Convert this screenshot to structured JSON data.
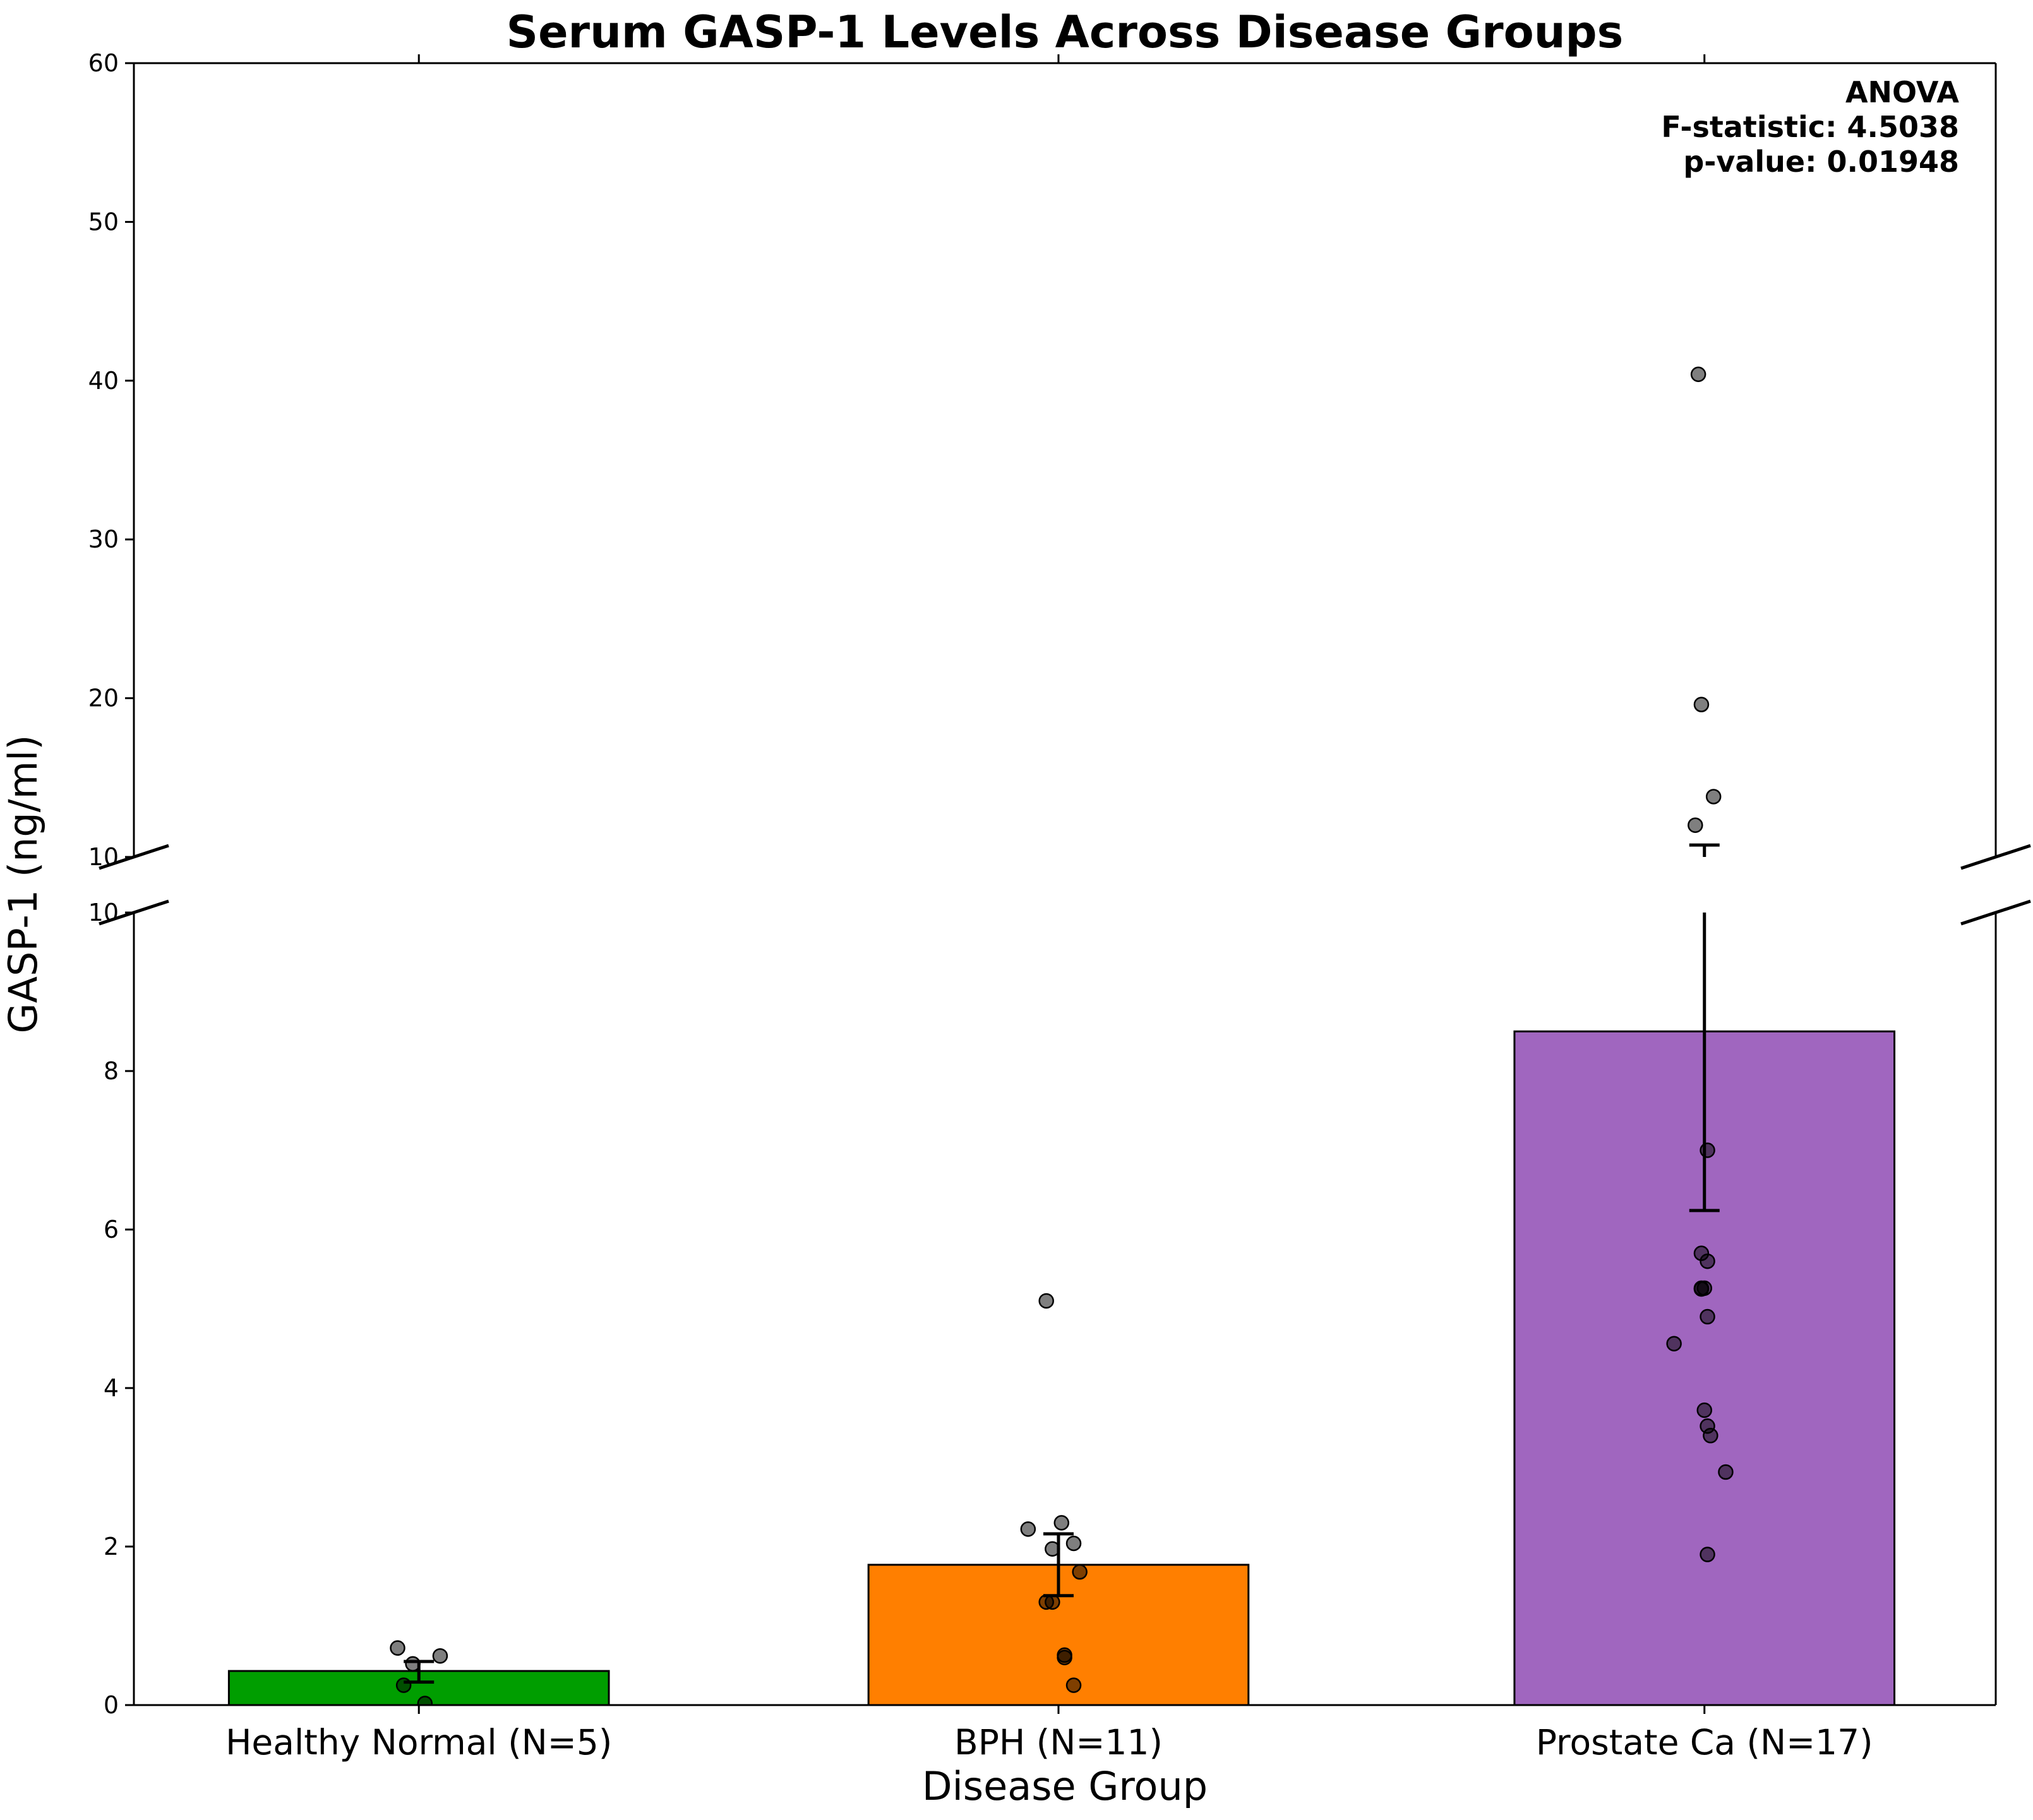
{
  "chart_data": {
    "type": "bar",
    "title": "Serum GASP-1 Levels Across Disease Groups",
    "xlabel": "Disease Group",
    "ylabel": "GASP-1 (ng/ml)",
    "broken_axis": true,
    "lower_panel": {
      "ylim": [
        0,
        10
      ],
      "ticks": [
        "0",
        "2",
        "4",
        "6",
        "8",
        "10"
      ]
    },
    "upper_panel": {
      "ylim": [
        10,
        60
      ],
      "ticks": [
        "10",
        "20",
        "30",
        "40",
        "50",
        "60"
      ]
    },
    "categories": [
      "Healthy Normal (N=5)",
      "BPH (N=11)",
      "Prostate Ca (N=17)"
    ],
    "values": [
      0.43,
      1.77,
      8.5
    ],
    "error": [
      {
        "low": 0.29,
        "high": 0.55
      },
      {
        "low": 1.38,
        "high": 2.16
      },
      {
        "low": 6.24,
        "high": 10.75
      }
    ],
    "colors": [
      "#009e00",
      "#ff7f00",
      "#a066bf"
    ],
    "points": [
      {
        "x": -0.07,
        "y": 0.72
      },
      {
        "x": -0.02,
        "y": 0.52
      },
      {
        "x": 0.07,
        "y": 0.62
      },
      {
        "x": -0.05,
        "y": 0.25
      },
      {
        "x": 0.02,
        "y": 0.02
      },
      {
        "x": 1.96,
        "y": 5.1
      },
      {
        "x": 1.9,
        "y": 2.22
      },
      {
        "x": 2.01,
        "y": 2.3
      },
      {
        "x": 1.98,
        "y": 1.97
      },
      {
        "x": 2.05,
        "y": 2.04
      },
      {
        "x": 2.07,
        "y": 1.68
      },
      {
        "x": 1.96,
        "y": 1.3
      },
      {
        "x": 1.98,
        "y": 1.3
      },
      {
        "x": 2.02,
        "y": 0.6
      },
      {
        "x": 2.02,
        "y": 0.63
      },
      {
        "x": 2.05,
        "y": 0.25
      },
      {
        "x": 3.98,
        "y": 40.4
      },
      {
        "x": 3.99,
        "y": 19.6
      },
      {
        "x": 4.03,
        "y": 13.8
      },
      {
        "x": 3.97,
        "y": 12.0
      },
      {
        "x": 4.01,
        "y": 7.0
      },
      {
        "x": 3.99,
        "y": 5.7
      },
      {
        "x": 4.01,
        "y": 5.6
      },
      {
        "x": 3.99,
        "y": 5.26
      },
      {
        "x": 4.0,
        "y": 5.26
      },
      {
        "x": 3.99,
        "y": 5.25
      },
      {
        "x": 4.01,
        "y": 4.9
      },
      {
        "x": 3.9,
        "y": 4.56
      },
      {
        "x": 4.0,
        "y": 3.72
      },
      {
        "x": 4.01,
        "y": 3.52
      },
      {
        "x": 4.02,
        "y": 3.4
      },
      {
        "x": 4.07,
        "y": 2.94
      },
      {
        "x": 4.01,
        "y": 1.9
      }
    ],
    "annotation": [
      "ANOVA",
      "F-statistic: 4.5038",
      "p-value: 0.01948"
    ],
    "annotation_position": "top-right"
  }
}
